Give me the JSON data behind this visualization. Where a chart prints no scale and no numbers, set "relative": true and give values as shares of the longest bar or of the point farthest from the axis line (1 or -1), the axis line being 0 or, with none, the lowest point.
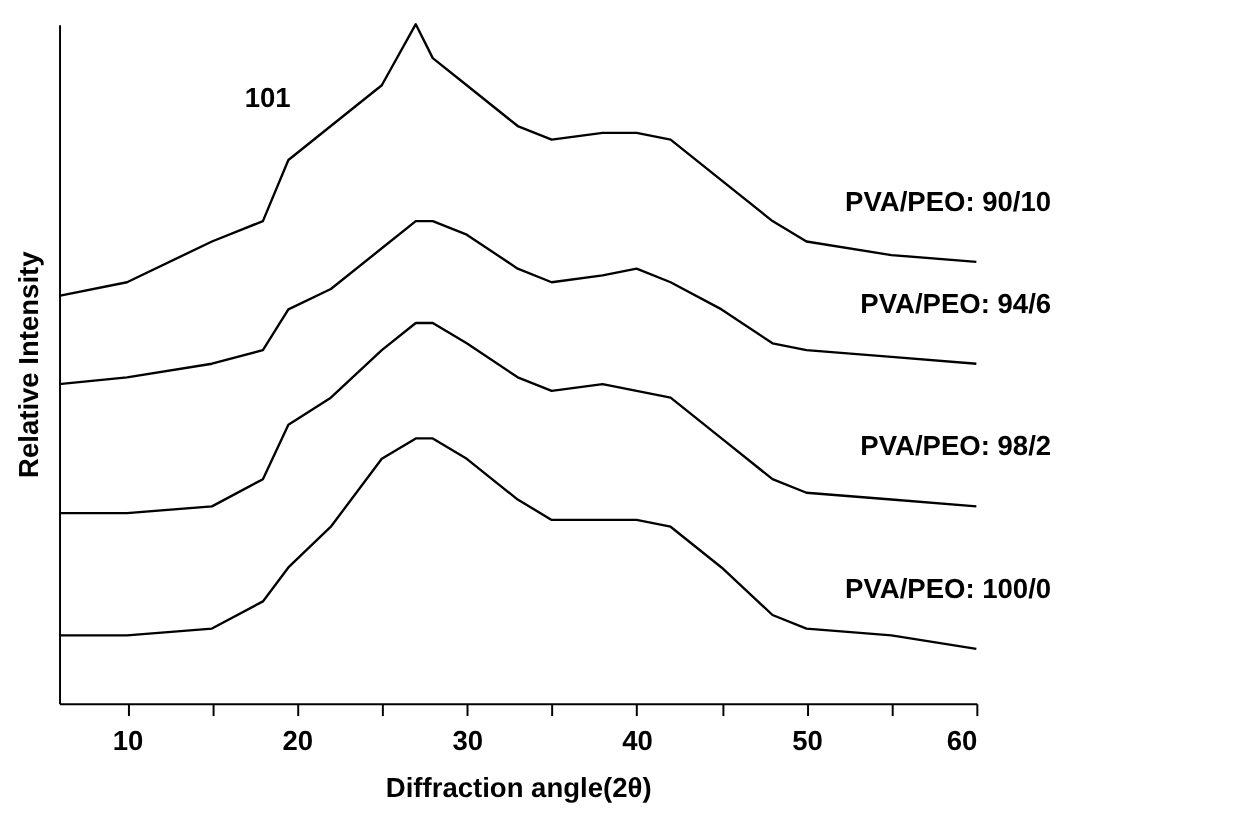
{
  "chart_data": {
    "type": "line",
    "relative": true,
    "xlabel": "Diffraction angle(2θ)",
    "ylabel": "Relative Intensity",
    "x": [
      6,
      10,
      15,
      18,
      19.5,
      22,
      25,
      27,
      28,
      30,
      33,
      35,
      38,
      40,
      42,
      45,
      48,
      50,
      55,
      60
    ],
    "xlim": [
      6,
      60
    ],
    "xticks": [
      10,
      {
        "value": 15,
        "label": null
      },
      20,
      {
        "value": 25,
        "label": null
      },
      30,
      {
        "value": 35,
        "label": null
      },
      40,
      {
        "value": 45,
        "label": null
      },
      50,
      {
        "value": 55,
        "label": null
      },
      60
    ],
    "series": [
      {
        "name": "PVA/PEO: 90/10",
        "color": "#000000",
        "values": [
          0.6,
          0.62,
          0.68,
          0.71,
          0.8,
          0.85,
          0.91,
          1.0,
          0.95,
          0.91,
          0.85,
          0.83,
          0.84,
          0.84,
          0.83,
          0.77,
          0.71,
          0.68,
          0.66,
          0.65
        ]
      },
      {
        "name": "PVA/PEO: 94/6",
        "color": "#000000",
        "values": [
          0.47,
          0.48,
          0.5,
          0.52,
          0.58,
          0.61,
          0.67,
          0.71,
          0.71,
          0.69,
          0.64,
          0.62,
          0.63,
          0.64,
          0.62,
          0.58,
          0.53,
          0.52,
          0.51,
          0.5
        ]
      },
      {
        "name": "PVA/PEO: 98/2",
        "color": "#000000",
        "values": [
          0.28,
          0.28,
          0.29,
          0.33,
          0.41,
          0.45,
          0.52,
          0.56,
          0.56,
          0.53,
          0.48,
          0.46,
          0.47,
          0.46,
          0.45,
          0.39,
          0.33,
          0.31,
          0.3,
          0.29
        ]
      },
      {
        "name": "PVA/PEO: 100/0",
        "color": "#000000",
        "values": [
          0.1,
          0.1,
          0.11,
          0.15,
          0.2,
          0.26,
          0.36,
          0.39,
          0.39,
          0.36,
          0.3,
          0.27,
          0.27,
          0.27,
          0.26,
          0.2,
          0.13,
          0.11,
          0.1,
          0.08
        ]
      }
    ],
    "annotations": [
      "101"
    ],
    "tick_labels": "x",
    "grid": false,
    "legend": false,
    "marker": "none",
    "line_style": "solid"
  }
}
